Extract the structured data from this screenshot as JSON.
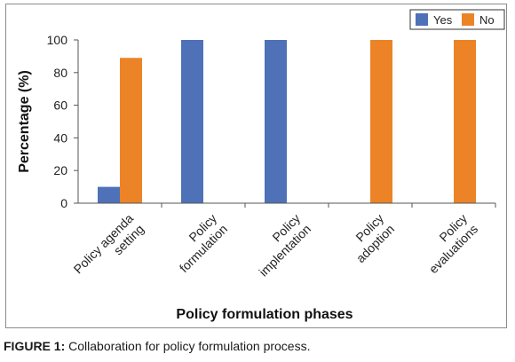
{
  "chart_data": {
    "type": "bar",
    "categories": [
      "Policy agenda setting",
      "Policy formulation",
      "Policy implentation",
      "Policy adoption",
      "Policy evaluations"
    ],
    "category_lines": [
      [
        "Policy agenda",
        "setting"
      ],
      [
        "Policy",
        "formulation"
      ],
      [
        "Policy",
        "implentation"
      ],
      [
        "Policy",
        "adoption"
      ],
      [
        "Policy",
        "evaluations"
      ]
    ],
    "series": [
      {
        "name": "Yes",
        "values": [
          10,
          100,
          100,
          0,
          0
        ],
        "color": "#4e71b8"
      },
      {
        "name": "No",
        "values": [
          89,
          0,
          0,
          100,
          100
        ],
        "color": "#ec8427"
      }
    ],
    "xlabel": "Policy formulation phases",
    "ylabel": "Percentage (%)",
    "ylim": [
      0,
      100
    ],
    "yticks": [
      0,
      20,
      40,
      60,
      80,
      100
    ],
    "grid": false,
    "legend_position": "top-right"
  },
  "caption": {
    "label": "FIGURE 1:",
    "text": " Collaboration for policy formulation process."
  }
}
